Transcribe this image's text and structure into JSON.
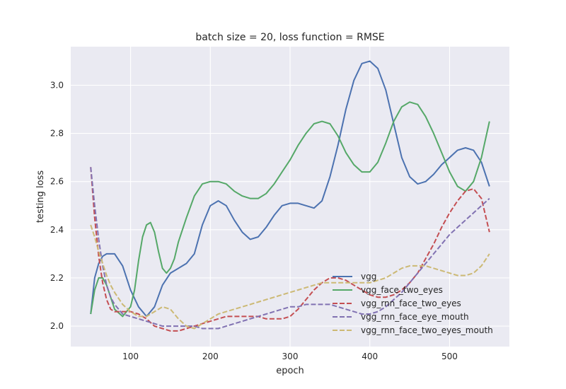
{
  "chart_data": {
    "type": "line",
    "title": "batch size = 20, loss function = RMSE",
    "xlabel": "epoch",
    "ylabel": "testing loss",
    "xlim": [
      25,
      575
    ],
    "ylim": [
      1.915,
      3.16
    ],
    "xticks": [
      100,
      200,
      300,
      400,
      500
    ],
    "yticks": [
      2.0,
      2.2,
      2.4,
      2.6,
      2.8,
      3.0
    ],
    "xtick_labels": [
      "100",
      "200",
      "300",
      "400",
      "500"
    ],
    "ytick_labels": [
      "2.0",
      "2.2",
      "2.4",
      "2.6",
      "2.8",
      "3.0"
    ],
    "grid": true,
    "legend_position": "lower-right",
    "background": "#eaeaf2",
    "series": [
      {
        "name": "vgg",
        "color": "#4c72b0",
        "style": "solid",
        "x": [
          50,
          55,
          60,
          65,
          70,
          75,
          80,
          90,
          100,
          110,
          120,
          130,
          140,
          150,
          160,
          170,
          180,
          190,
          200,
          210,
          220,
          230,
          240,
          250,
          260,
          270,
          280,
          290,
          300,
          310,
          320,
          330,
          340,
          350,
          360,
          370,
          380,
          390,
          400,
          410,
          420,
          430,
          440,
          450,
          460,
          470,
          480,
          490,
          500,
          510,
          520,
          530,
          540,
          550
        ],
        "y": [
          2.05,
          2.2,
          2.26,
          2.29,
          2.3,
          2.3,
          2.3,
          2.25,
          2.15,
          2.08,
          2.04,
          2.08,
          2.17,
          2.22,
          2.24,
          2.26,
          2.3,
          2.42,
          2.5,
          2.52,
          2.5,
          2.44,
          2.39,
          2.36,
          2.37,
          2.41,
          2.46,
          2.5,
          2.51,
          2.51,
          2.5,
          2.49,
          2.52,
          2.62,
          2.75,
          2.9,
          3.02,
          3.09,
          3.1,
          3.07,
          2.98,
          2.84,
          2.7,
          2.62,
          2.59,
          2.6,
          2.63,
          2.67,
          2.7,
          2.73,
          2.74,
          2.73,
          2.68,
          2.58
        ]
      },
      {
        "name": "vgg_face_two_eyes",
        "color": "#55a868",
        "style": "solid",
        "x": [
          50,
          55,
          60,
          65,
          70,
          75,
          80,
          90,
          100,
          105,
          110,
          115,
          120,
          125,
          130,
          135,
          140,
          145,
          150,
          155,
          160,
          170,
          180,
          190,
          200,
          210,
          220,
          230,
          240,
          250,
          260,
          270,
          280,
          290,
          300,
          310,
          320,
          330,
          340,
          350,
          360,
          370,
          380,
          390,
          400,
          410,
          420,
          430,
          440,
          450,
          460,
          470,
          480,
          490,
          500,
          510,
          520,
          530,
          540,
          550
        ],
        "y": [
          2.05,
          2.15,
          2.2,
          2.2,
          2.17,
          2.12,
          2.07,
          2.04,
          2.08,
          2.15,
          2.27,
          2.37,
          2.42,
          2.43,
          2.39,
          2.31,
          2.24,
          2.22,
          2.24,
          2.28,
          2.35,
          2.45,
          2.54,
          2.59,
          2.6,
          2.6,
          2.59,
          2.56,
          2.54,
          2.53,
          2.53,
          2.55,
          2.59,
          2.64,
          2.69,
          2.75,
          2.8,
          2.84,
          2.85,
          2.84,
          2.79,
          2.72,
          2.67,
          2.64,
          2.64,
          2.68,
          2.76,
          2.85,
          2.91,
          2.93,
          2.92,
          2.87,
          2.8,
          2.72,
          2.64,
          2.58,
          2.56,
          2.6,
          2.7,
          2.85
        ]
      },
      {
        "name": "vgg_rnn_face_two_eyes",
        "color": "#c44e52",
        "style": "dashed",
        "x": [
          50,
          55,
          60,
          65,
          70,
          75,
          80,
          90,
          100,
          110,
          120,
          130,
          140,
          150,
          160,
          170,
          180,
          190,
          200,
          210,
          220,
          230,
          240,
          250,
          260,
          270,
          280,
          290,
          300,
          310,
          320,
          330,
          340,
          350,
          360,
          370,
          380,
          390,
          400,
          410,
          420,
          430,
          440,
          450,
          460,
          470,
          480,
          490,
          500,
          510,
          520,
          530,
          540,
          550
        ],
        "y": [
          2.66,
          2.45,
          2.29,
          2.18,
          2.11,
          2.07,
          2.06,
          2.06,
          2.06,
          2.05,
          2.03,
          2.0,
          1.99,
          1.98,
          1.98,
          1.99,
          2.0,
          2.01,
          2.02,
          2.03,
          2.04,
          2.04,
          2.04,
          2.04,
          2.04,
          2.03,
          2.03,
          2.03,
          2.04,
          2.07,
          2.11,
          2.15,
          2.18,
          2.2,
          2.2,
          2.19,
          2.17,
          2.15,
          2.13,
          2.12,
          2.12,
          2.13,
          2.15,
          2.18,
          2.22,
          2.28,
          2.34,
          2.41,
          2.47,
          2.52,
          2.56,
          2.57,
          2.53,
          2.39
        ]
      },
      {
        "name": "vgg_rnn_face_eye_mouth",
        "color": "#8172b2",
        "style": "dashed",
        "x": [
          50,
          55,
          60,
          65,
          70,
          75,
          80,
          90,
          100,
          110,
          120,
          130,
          140,
          150,
          160,
          170,
          180,
          190,
          200,
          210,
          220,
          230,
          240,
          250,
          260,
          270,
          280,
          290,
          300,
          310,
          320,
          330,
          340,
          350,
          360,
          370,
          380,
          390,
          400,
          410,
          420,
          430,
          440,
          450,
          460,
          470,
          480,
          490,
          500,
          510,
          520,
          530,
          540,
          550
        ],
        "y": [
          2.66,
          2.5,
          2.36,
          2.25,
          2.17,
          2.12,
          2.09,
          2.05,
          2.04,
          2.03,
          2.02,
          2.01,
          2.0,
          2.0,
          2.0,
          2.0,
          2.0,
          1.99,
          1.99,
          1.99,
          2.0,
          2.01,
          2.02,
          2.03,
          2.04,
          2.05,
          2.06,
          2.07,
          2.08,
          2.08,
          2.09,
          2.09,
          2.09,
          2.09,
          2.08,
          2.07,
          2.06,
          2.05,
          2.05,
          2.06,
          2.08,
          2.11,
          2.14,
          2.18,
          2.22,
          2.26,
          2.3,
          2.34,
          2.38,
          2.41,
          2.44,
          2.47,
          2.5,
          2.53
        ]
      },
      {
        "name": "vgg_rnn_face_two_eyes_mouth",
        "color": "#ccb974",
        "style": "dashed",
        "x": [
          50,
          55,
          60,
          65,
          70,
          75,
          80,
          90,
          100,
          110,
          120,
          130,
          140,
          150,
          160,
          170,
          180,
          190,
          200,
          210,
          220,
          230,
          240,
          250,
          260,
          270,
          280,
          290,
          300,
          310,
          320,
          330,
          340,
          350,
          360,
          370,
          380,
          390,
          400,
          410,
          420,
          430,
          440,
          450,
          460,
          470,
          480,
          490,
          500,
          510,
          520,
          530,
          540,
          550
        ],
        "y": [
          2.42,
          2.37,
          2.31,
          2.26,
          2.21,
          2.17,
          2.14,
          2.09,
          2.06,
          2.04,
          2.04,
          2.06,
          2.08,
          2.07,
          2.03,
          2.0,
          1.99,
          2.01,
          2.03,
          2.05,
          2.06,
          2.07,
          2.08,
          2.09,
          2.1,
          2.11,
          2.12,
          2.13,
          2.14,
          2.15,
          2.16,
          2.17,
          2.18,
          2.18,
          2.18,
          2.18,
          2.18,
          2.18,
          2.18,
          2.19,
          2.2,
          2.22,
          2.24,
          2.25,
          2.25,
          2.25,
          2.24,
          2.23,
          2.22,
          2.21,
          2.21,
          2.22,
          2.25,
          2.3
        ]
      }
    ]
  }
}
